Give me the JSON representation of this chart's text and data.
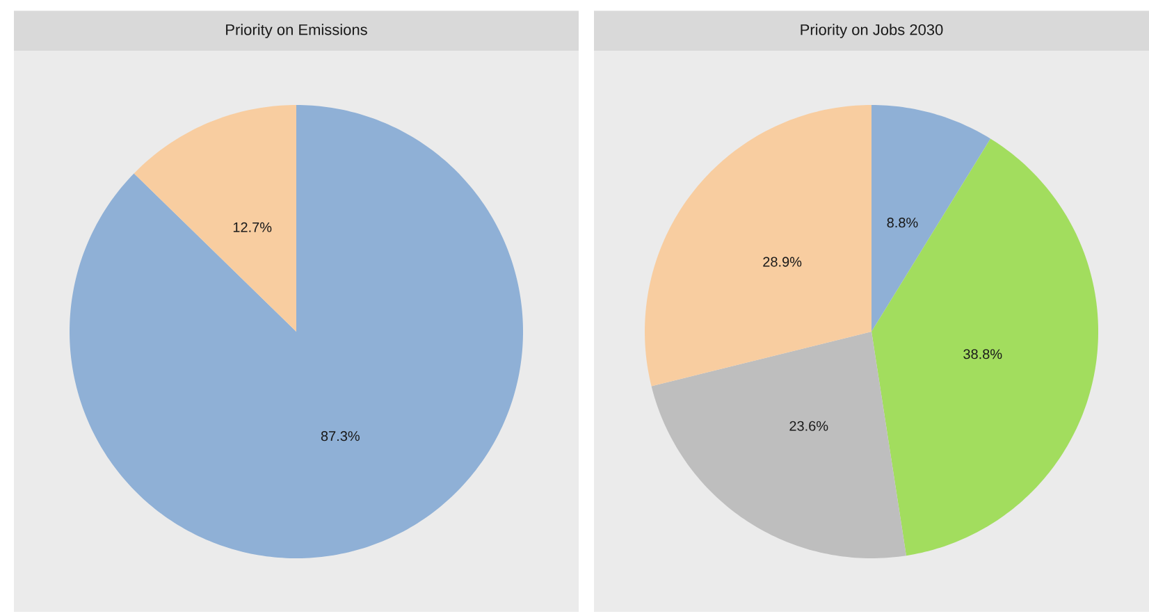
{
  "chart_data": [
    {
      "type": "pie",
      "title": "Priority on Emissions",
      "categories": [
        null,
        null
      ],
      "values": [
        87.3,
        12.7
      ],
      "colors": [
        "#8fb0d6",
        "#f8cda0"
      ],
      "value_labels": [
        "87.3%",
        "12.7%"
      ]
    },
    {
      "type": "pie",
      "title": "Priority on Jobs 2030",
      "categories": [
        null,
        null,
        null,
        null
      ],
      "values": [
        8.8,
        38.8,
        23.6,
        28.9
      ],
      "colors": [
        "#8fb0d6",
        "#a2dd5e",
        "#bebebe",
        "#f8cda0"
      ],
      "value_labels": [
        "8.8%",
        "38.8%",
        "23.6%",
        "28.9%"
      ]
    }
  ]
}
